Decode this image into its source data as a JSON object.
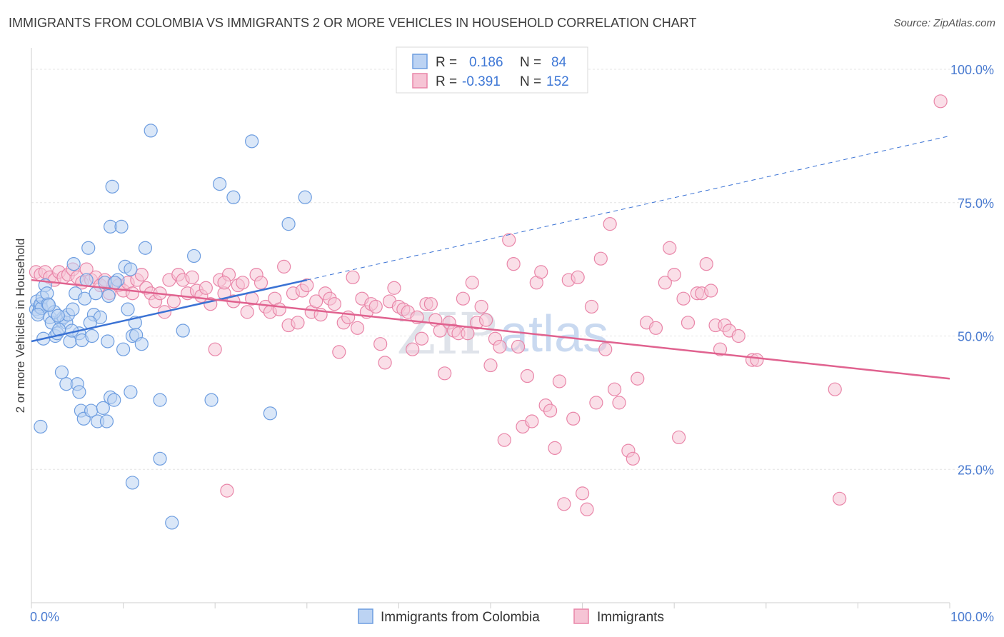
{
  "title": "IMMIGRANTS FROM COLOMBIA VS IMMIGRANTS 2 OR MORE VEHICLES IN HOUSEHOLD CORRELATION CHART",
  "source": "Source: ZipAtlas.com",
  "watermark": {
    "zip": "ZIP",
    "atlas": "atlas"
  },
  "colors": {
    "blue": "#6d9de0",
    "blue_fill": "#bcd3f3",
    "blue_line": "#3a72d4",
    "pink": "#e985a8",
    "pink_fill": "#f6c4d5",
    "pink_line": "#e0628f",
    "grid": "#e4e4e4",
    "axis_label": "#4a7bd0"
  },
  "legend_top": {
    "rows": [
      {
        "r_label": "R =",
        "r_value": "0.186",
        "n_label": "N =",
        "n_value": "84"
      },
      {
        "r_label": "R =",
        "r_value": "-0.391",
        "n_label": "N =",
        "n_value": "152"
      }
    ]
  },
  "legend_bottom": [
    "Immigrants from Colombia",
    "Immigrants"
  ],
  "chart_data": {
    "type": "scatter",
    "title": "IMMIGRANTS FROM COLOMBIA VS IMMIGRANTS 2 OR MORE VEHICLES IN HOUSEHOLD CORRELATION CHART",
    "xlabel": "",
    "ylabel": "2 or more Vehicles in Household",
    "xlim": [
      0,
      100
    ],
    "ylim": [
      0,
      105
    ],
    "x_tick_labels": [
      "0.0%",
      "100.0%"
    ],
    "y_ticks": [
      25,
      50,
      75,
      100
    ],
    "y_tick_labels": [
      "25.0%",
      "50.0%",
      "75.0%",
      "100.0%"
    ],
    "grid": true,
    "legend_position": "top-center",
    "series": [
      {
        "name": "Immigrants from Colombia",
        "r": 0.186,
        "n": 84,
        "trend": {
          "x0": 0,
          "y0": 49.0,
          "x1": 30,
          "y1": 60.5,
          "dashed_to_x": 100,
          "dashed_to_y": 87.5
        },
        "points": [
          [
            0.5,
            55.0
          ],
          [
            0.6,
            56.5
          ],
          [
            0.8,
            54.5
          ],
          [
            0.9,
            55.5
          ],
          [
            1.0,
            56.0
          ],
          [
            1.1,
            55.2
          ],
          [
            0.7,
            54.0
          ],
          [
            1.2,
            57.2
          ],
          [
            1.5,
            59.5
          ],
          [
            1.8,
            56.0
          ],
          [
            2.0,
            53.5
          ],
          [
            2.2,
            52.5
          ],
          [
            1.3,
            49.5
          ],
          [
            2.6,
            50.0
          ],
          [
            2.8,
            50.5
          ],
          [
            3.2,
            53.0
          ],
          [
            3.5,
            53.5
          ],
          [
            3.8,
            52.5
          ],
          [
            4.0,
            54.0
          ],
          [
            4.2,
            49.0
          ],
          [
            4.5,
            55.0
          ],
          [
            4.6,
            63.5
          ],
          [
            4.8,
            58.0
          ],
          [
            5.2,
            50.5
          ],
          [
            5.5,
            49.2
          ],
          [
            5.8,
            57.0
          ],
          [
            6.0,
            60.5
          ],
          [
            6.2,
            66.5
          ],
          [
            6.6,
            50.0
          ],
          [
            6.8,
            54.0
          ],
          [
            7.0,
            58.0
          ],
          [
            7.5,
            53.5
          ],
          [
            8.0,
            60.0
          ],
          [
            8.3,
            49.0
          ],
          [
            8.8,
            78.0
          ],
          [
            8.6,
            70.5
          ],
          [
            9.4,
            60.5
          ],
          [
            9.8,
            70.5
          ],
          [
            10.0,
            47.5
          ],
          [
            10.2,
            63.0
          ],
          [
            10.5,
            55.0
          ],
          [
            10.8,
            62.5
          ],
          [
            11.0,
            50.0
          ],
          [
            11.3,
            52.5
          ],
          [
            11.4,
            50.2
          ],
          [
            12.0,
            48.5
          ],
          [
            12.4,
            66.5
          ],
          [
            13.0,
            88.5
          ],
          [
            14.0,
            38.0
          ],
          [
            14.0,
            27.0
          ],
          [
            15.3,
            15.0
          ],
          [
            16.5,
            51.0
          ],
          [
            17.7,
            65.0
          ],
          [
            19.6,
            38.0
          ],
          [
            20.5,
            78.5
          ],
          [
            22.0,
            76.0
          ],
          [
            24.0,
            86.5
          ],
          [
            26.0,
            35.5
          ],
          [
            28.0,
            71.0
          ],
          [
            29.8,
            76.0
          ],
          [
            1.0,
            33.0
          ],
          [
            3.3,
            43.2
          ],
          [
            3.8,
            41.0
          ],
          [
            5.0,
            41.0
          ],
          [
            5.2,
            39.5
          ],
          [
            5.4,
            36.0
          ],
          [
            5.7,
            34.5
          ],
          [
            6.5,
            36.0
          ],
          [
            7.2,
            34.0
          ],
          [
            7.8,
            36.5
          ],
          [
            8.2,
            34.0
          ],
          [
            8.6,
            38.5
          ],
          [
            9.0,
            38.0
          ],
          [
            10.8,
            39.5
          ],
          [
            11.0,
            22.5
          ],
          [
            1.7,
            58.0
          ],
          [
            2.5,
            54.5
          ],
          [
            4.4,
            51.0
          ],
          [
            6.4,
            52.5
          ],
          [
            8.4,
            57.5
          ],
          [
            9.1,
            60.0
          ],
          [
            2.9,
            53.8
          ],
          [
            3.0,
            51.2
          ],
          [
            1.9,
            55.8
          ]
        ]
      },
      {
        "name": "Immigrants",
        "r": -0.391,
        "n": 152,
        "trend": {
          "x0": 0,
          "y0": 60.5,
          "x1": 100,
          "y1": 42.0
        },
        "points": [
          [
            0.5,
            62.0
          ],
          [
            1.0,
            61.5
          ],
          [
            1.5,
            62.0
          ],
          [
            2.0,
            61.0
          ],
          [
            2.5,
            60.5
          ],
          [
            3.0,
            62.0
          ],
          [
            3.5,
            61.0
          ],
          [
            4.0,
            61.5
          ],
          [
            4.5,
            62.5
          ],
          [
            5.0,
            61.0
          ],
          [
            5.5,
            60.0
          ],
          [
            6.0,
            62.5
          ],
          [
            6.5,
            60.5
          ],
          [
            7.0,
            61.0
          ],
          [
            7.5,
            59.5
          ],
          [
            8.0,
            60.5
          ],
          [
            8.5,
            58.0
          ],
          [
            9.0,
            60.0
          ],
          [
            9.5,
            59.5
          ],
          [
            10.0,
            58.5
          ],
          [
            10.5,
            60.0
          ],
          [
            11.0,
            58.0
          ],
          [
            11.5,
            60.5
          ],
          [
            12.0,
            61.5
          ],
          [
            12.5,
            59.0
          ],
          [
            13.0,
            58.0
          ],
          [
            13.5,
            56.5
          ],
          [
            14.0,
            58.0
          ],
          [
            14.5,
            54.5
          ],
          [
            15.0,
            60.5
          ],
          [
            15.5,
            56.5
          ],
          [
            16.0,
            61.5
          ],
          [
            16.5,
            60.5
          ],
          [
            17.0,
            58.0
          ],
          [
            17.5,
            61.0
          ],
          [
            18.0,
            58.5
          ],
          [
            18.5,
            57.5
          ],
          [
            19.0,
            59.0
          ],
          [
            19.5,
            56.0
          ],
          [
            20.0,
            47.5
          ],
          [
            20.5,
            60.5
          ],
          [
            21.0,
            58.0
          ],
          [
            21.5,
            61.5
          ],
          [
            22.0,
            56.5
          ],
          [
            22.5,
            59.5
          ],
          [
            23.0,
            60.0
          ],
          [
            23.5,
            54.5
          ],
          [
            24.0,
            57.0
          ],
          [
            24.5,
            61.5
          ],
          [
            25.0,
            60.0
          ],
          [
            25.5,
            55.5
          ],
          [
            26.0,
            54.5
          ],
          [
            26.5,
            57.0
          ],
          [
            27.0,
            55.0
          ],
          [
            27.5,
            63.0
          ],
          [
            28.0,
            52.0
          ],
          [
            28.5,
            58.0
          ],
          [
            29.0,
            52.5
          ],
          [
            29.5,
            58.5
          ],
          [
            30.0,
            59.5
          ],
          [
            30.5,
            54.5
          ],
          [
            31.0,
            56.5
          ],
          [
            31.5,
            54.0
          ],
          [
            32.0,
            58.0
          ],
          [
            32.5,
            57.0
          ],
          [
            33.0,
            56.0
          ],
          [
            33.5,
            47.0
          ],
          [
            34.0,
            52.5
          ],
          [
            34.5,
            53.5
          ],
          [
            35.0,
            61.0
          ],
          [
            35.5,
            51.5
          ],
          [
            36.0,
            57.0
          ],
          [
            36.5,
            54.5
          ],
          [
            37.0,
            56.0
          ],
          [
            37.5,
            55.5
          ],
          [
            38.0,
            48.5
          ],
          [
            38.5,
            45.0
          ],
          [
            39.0,
            56.5
          ],
          [
            39.5,
            59.0
          ],
          [
            40.0,
            55.5
          ],
          [
            40.5,
            55.0
          ],
          [
            41.0,
            54.5
          ],
          [
            41.5,
            47.5
          ],
          [
            42.0,
            53.5
          ],
          [
            42.5,
            49.5
          ],
          [
            43.0,
            56.0
          ],
          [
            43.5,
            56.0
          ],
          [
            44.0,
            53.0
          ],
          [
            44.5,
            51.0
          ],
          [
            45.0,
            43.0
          ],
          [
            45.5,
            52.5
          ],
          [
            46.0,
            51.0
          ],
          [
            46.5,
            50.5
          ],
          [
            47.0,
            57.0
          ],
          [
            47.5,
            50.5
          ],
          [
            48.0,
            60.0
          ],
          [
            48.5,
            52.5
          ],
          [
            49.0,
            55.5
          ],
          [
            49.5,
            53.0
          ],
          [
            50.0,
            44.5
          ],
          [
            50.5,
            49.5
          ],
          [
            51.0,
            48.0
          ],
          [
            51.5,
            30.5
          ],
          [
            52.0,
            68.0
          ],
          [
            52.5,
            63.5
          ],
          [
            53.0,
            48.0
          ],
          [
            53.5,
            33.0
          ],
          [
            54.0,
            42.5
          ],
          [
            54.5,
            34.0
          ],
          [
            55.0,
            60.0
          ],
          [
            55.5,
            62.0
          ],
          [
            56.0,
            37.0
          ],
          [
            56.5,
            36.0
          ],
          [
            57.0,
            29.0
          ],
          [
            57.5,
            41.5
          ],
          [
            58.0,
            18.5
          ],
          [
            58.5,
            60.5
          ],
          [
            59.0,
            34.5
          ],
          [
            59.5,
            61.0
          ],
          [
            60.0,
            20.5
          ],
          [
            60.5,
            17.5
          ],
          [
            61.0,
            55.5
          ],
          [
            61.5,
            37.5
          ],
          [
            62.0,
            64.5
          ],
          [
            62.5,
            47.5
          ],
          [
            63.0,
            71.0
          ],
          [
            63.5,
            40.0
          ],
          [
            64.0,
            37.5
          ],
          [
            65.0,
            28.5
          ],
          [
            65.5,
            27.0
          ],
          [
            66.0,
            42.0
          ],
          [
            67.0,
            52.5
          ],
          [
            68.0,
            51.5
          ],
          [
            69.0,
            60.0
          ],
          [
            69.5,
            66.5
          ],
          [
            70.0,
            61.5
          ],
          [
            70.5,
            31.0
          ],
          [
            71.0,
            57.0
          ],
          [
            71.5,
            52.5
          ],
          [
            72.5,
            58.0
          ],
          [
            73.0,
            58.0
          ],
          [
            73.5,
            63.5
          ],
          [
            74.0,
            58.5
          ],
          [
            74.5,
            52.0
          ],
          [
            75.0,
            47.5
          ],
          [
            75.5,
            52.0
          ],
          [
            76.0,
            51.0
          ],
          [
            77.0,
            50.0
          ],
          [
            78.5,
            45.5
          ],
          [
            79.0,
            45.5
          ],
          [
            87.5,
            40.0
          ],
          [
            88.0,
            19.5
          ],
          [
            99.0,
            94.0
          ],
          [
            21.0,
            60.0
          ],
          [
            21.3,
            21.0
          ]
        ]
      }
    ]
  }
}
